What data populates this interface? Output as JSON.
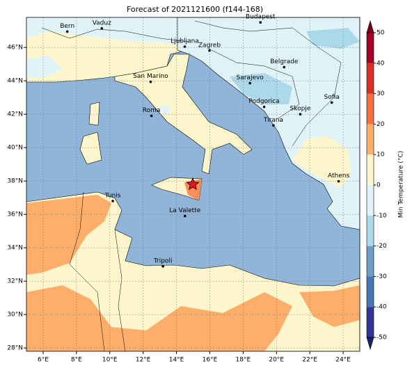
{
  "map": {
    "title": "Forecast of 2021121600 (f144-168)",
    "xlim": [
      5,
      25
    ],
    "ylim": [
      27.8,
      47.8
    ],
    "xticks": [
      {
        "value": 6,
        "label": "6°E"
      },
      {
        "value": 8,
        "label": "8°E"
      },
      {
        "value": 10,
        "label": "10°E"
      },
      {
        "value": 12,
        "label": "12°E"
      },
      {
        "value": 14,
        "label": "14°E"
      },
      {
        "value": 16,
        "label": "16°E"
      },
      {
        "value": 18,
        "label": "18°E"
      },
      {
        "value": 20,
        "label": "20°E"
      },
      {
        "value": 22,
        "label": "22°E"
      },
      {
        "value": 24,
        "label": "24°E"
      }
    ],
    "yticks": [
      {
        "value": 28,
        "label": "28°N"
      },
      {
        "value": 30,
        "label": "30°N"
      },
      {
        "value": 32,
        "label": "32°N"
      },
      {
        "value": 34,
        "label": "34°N"
      },
      {
        "value": 36,
        "label": "36°N"
      },
      {
        "value": 38,
        "label": "38°N"
      },
      {
        "value": 40,
        "label": "40°N"
      },
      {
        "value": 42,
        "label": "42°N"
      },
      {
        "value": 44,
        "label": "44°N"
      },
      {
        "value": 46,
        "label": "46°N"
      }
    ],
    "grid": true,
    "cities": [
      {
        "name": "Bern",
        "lon": 7.45,
        "lat": 46.95
      },
      {
        "name": "Vaduz",
        "lon": 9.52,
        "lat": 47.14
      },
      {
        "name": "Budapest",
        "lon": 19.04,
        "lat": 47.5
      },
      {
        "name": "Ljubljana",
        "lon": 14.5,
        "lat": 46.05
      },
      {
        "name": "Zagreb",
        "lon": 15.98,
        "lat": 45.81
      },
      {
        "name": "Belgrade",
        "lon": 20.46,
        "lat": 44.82
      },
      {
        "name": "San Marino",
        "lon": 12.45,
        "lat": 43.94
      },
      {
        "name": "Sarajevo",
        "lon": 18.41,
        "lat": 43.86
      },
      {
        "name": "Sofia",
        "lon": 23.32,
        "lat": 42.7
      },
      {
        "name": "Podgorica",
        "lon": 19.26,
        "lat": 42.44
      },
      {
        "name": "Skopje",
        "lon": 21.43,
        "lat": 42.0
      },
      {
        "name": "Roma",
        "lon": 12.5,
        "lat": 41.9
      },
      {
        "name": "Tirana",
        "lon": 19.82,
        "lat": 41.33
      },
      {
        "name": "Athens",
        "lon": 23.73,
        "lat": 37.98
      },
      {
        "name": "Tunis",
        "lon": 10.18,
        "lat": 36.8
      },
      {
        "name": "La Valette",
        "lon": 14.51,
        "lat": 35.9
      },
      {
        "name": "Tripoli",
        "lon": 13.19,
        "lat": 32.89
      }
    ],
    "colorbar": {
      "label": "Min Temperature (°C)",
      "lim": [
        -50,
        50
      ],
      "ticks": [
        -50,
        -40,
        -30,
        -20,
        -10,
        0,
        10,
        20,
        30,
        40,
        50
      ],
      "colors": [
        "#313695",
        "#4575b4",
        "#6f9bc8",
        "#abd9e9",
        "#e0f3f8",
        "#fdf6cd",
        "#fdae6b",
        "#f46d43",
        "#d73027",
        "#a50026"
      ],
      "under_color": "#1b1f6e",
      "over_color": "#7f0020"
    }
  }
}
